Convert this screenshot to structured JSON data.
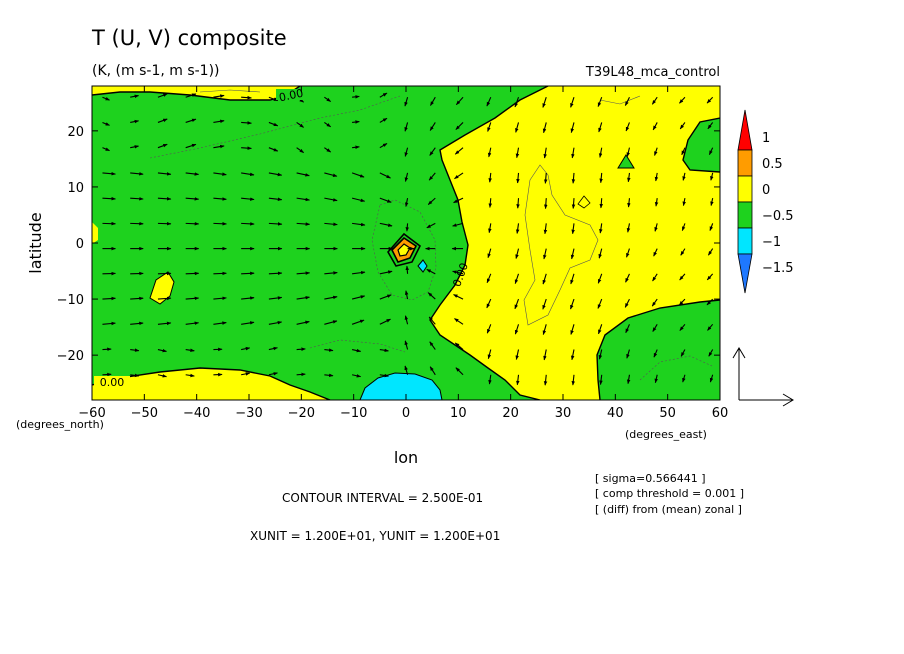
{
  "title": "T (U, V) composite",
  "subtitle": "(K, (m s-1, m s-1))",
  "run_label": "T39L48_mca_control",
  "x_unit_label": "(degrees_east)",
  "y_unit_label": "(degrees_north)",
  "contour_interval_text": "CONTOUR INTERVAL = 2.500E-01",
  "unit_text": "XUNIT = 1.200E+01, YUNIT = 1.200E+01",
  "info_lines": [
    "[ sigma=0.566441 ]",
    "[ comp threshold = 0.001 ]",
    "[ (diff) from (mean) zonal ]"
  ],
  "contour_labels": [
    "0.00",
    "0.00",
    "0.00"
  ],
  "colors": {
    "c_lt_m1_25": "#1e78ff",
    "c_m1_25_m0_75": "#00e6ff",
    "c_m0_75_m0_25": "#1ed21e",
    "c_m0_25_0_25": "#ffff00",
    "c_0_25_0_75": "#ff9c00",
    "c_gt_0_75": "#ff0000"
  },
  "chart_data": {
    "type": "heatmap",
    "description_fields": "shaded contour of T anomaly with overlaid (U,V) wind vectors",
    "xlabel": "lon",
    "ylabel": "latitude",
    "xlim": [
      -60,
      60
    ],
    "ylim": [
      -28,
      28
    ],
    "x_ticks": [
      -60,
      -50,
      -40,
      -30,
      -20,
      -10,
      0,
      10,
      20,
      30,
      40,
      50,
      60
    ],
    "y_ticks": [
      -20,
      -10,
      0,
      10,
      20
    ],
    "x_tick_labels": [
      "−60",
      "−50",
      "−40",
      "−30",
      "−20",
      "−10",
      "0",
      "10",
      "20",
      "30",
      "40",
      "50",
      "60"
    ],
    "y_tick_labels": [
      "−20",
      "−10",
      "0",
      "10",
      "20"
    ],
    "colorbar": {
      "tick_labels": [
        "1",
        "0.5",
        "0",
        "−0.5",
        "−1",
        "−1.5"
      ],
      "tick_values": [
        1,
        0.5,
        0,
        -0.5,
        -1,
        -1.5
      ],
      "boundaries": [
        -1.25,
        -0.75,
        -0.25,
        0.25,
        0.75
      ]
    },
    "regions": [
      {
        "level": "c_m0_75_m0_25",
        "note": "western negative anomaly region (-60 to ~5E)"
      },
      {
        "level": "c_m0_25_0_25",
        "note": "eastern near-zero region (~5E to ~45E)"
      },
      {
        "level": "c_m0_25_0_25",
        "note": "northwest strip near 25N-28N, -60 to -20"
      },
      {
        "level": "c_m0_25_0_25",
        "note": "southern strip near -28 to -20S, -60 to -5"
      },
      {
        "level": "c_m1_25_m0_75",
        "note": "small patch near 0-8E at southern edge"
      },
      {
        "level": "c_m0_75_m0_25",
        "note": "southeast negative region (37E-60E, -10 to -28)"
      },
      {
        "level": "c_m0_75_m0_25",
        "note": "northeast negative region (50E-60E, 10N-23N)"
      }
    ],
    "contour_interval": 0.25,
    "vector_reference": {
      "xunit": 12.0,
      "yunit": 12.0
    }
  }
}
